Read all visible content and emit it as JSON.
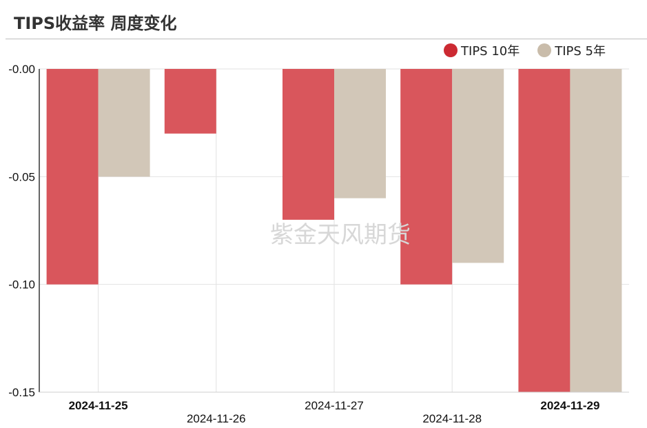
{
  "header": {
    "title": "TIPS收益率 周度变化"
  },
  "watermark": "紫金天风期货",
  "colors": {
    "tips10": "#d9565c",
    "tips5": "#d2c7b8",
    "legend10": "#cc2a32",
    "legend5": "#c9bcaa"
  },
  "chart_data": {
    "type": "bar",
    "title": "TIPS收益率 周度变化",
    "categories": [
      "2024-11-25",
      "2024-11-26",
      "2024-11-27",
      "2024-11-28",
      "2024-11-29"
    ],
    "category_bold": [
      true,
      false,
      false,
      false,
      true
    ],
    "series": [
      {
        "name": "TIPS 10年",
        "values": [
          -0.1,
          -0.03,
          -0.07,
          -0.1,
          -0.15
        ]
      },
      {
        "name": "TIPS 5年",
        "values": [
          -0.05,
          0,
          -0.06,
          -0.09,
          -0.15
        ]
      }
    ],
    "ylim": [
      -0.15,
      0.0
    ],
    "yticks": [
      "-0.00",
      "-0.05",
      "-0.10",
      "-0.15"
    ],
    "ytick_values": [
      0.0,
      -0.05,
      -0.1,
      -0.15
    ],
    "grid": true,
    "legend_position": "top-right",
    "xlabel": "",
    "ylabel": ""
  }
}
